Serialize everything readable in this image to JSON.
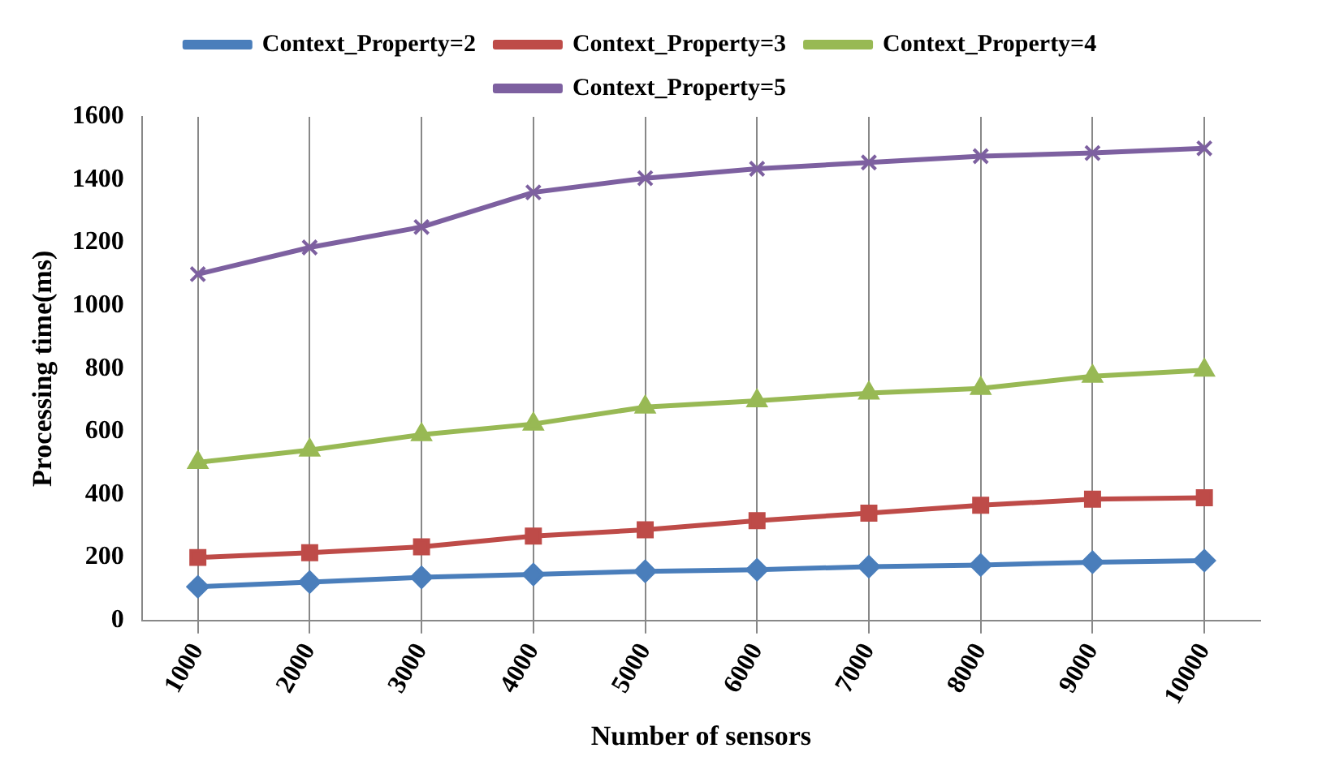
{
  "chart_data": {
    "type": "line",
    "xlabel": "Number of sensors",
    "ylabel": "Processing time(ms)",
    "categories": [
      "1000",
      "2000",
      "3000",
      "4000",
      "5000",
      "6000",
      "7000",
      "8000",
      "9000",
      "10000"
    ],
    "series": [
      {
        "name": "Context_Property=2",
        "color": "#4a7ebb",
        "marker": "diamond",
        "values": [
          107,
          122,
          137,
          146,
          156,
          161,
          171,
          176,
          185,
          190
        ]
      },
      {
        "name": "Context_Property=3",
        "color": "#be4b48",
        "marker": "square",
        "values": [
          200,
          215,
          234,
          268,
          288,
          317,
          341,
          366,
          385,
          390
        ]
      },
      {
        "name": "Context_Property=4",
        "color": "#98b954",
        "marker": "triangle",
        "values": [
          502,
          541,
          590,
          624,
          678,
          698,
          722,
          737,
          776,
          795
        ]
      },
      {
        "name": "Context_Property=5",
        "color": "#7d60a0",
        "marker": "cross",
        "values": [
          1100,
          1185,
          1250,
          1360,
          1405,
          1435,
          1455,
          1475,
          1485,
          1500
        ]
      }
    ],
    "ylim": [
      0,
      1600
    ],
    "yticks": [
      0,
      200,
      400,
      600,
      800,
      1000,
      1200,
      1400,
      1600
    ],
    "grid": "x",
    "legend": "top"
  }
}
